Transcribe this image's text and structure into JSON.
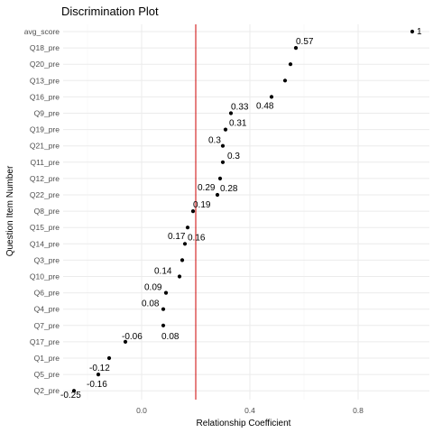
{
  "chart_data": {
    "type": "scatter",
    "title": "Discrimination Plot",
    "xlabel": "Relationship Coefficient",
    "ylabel": "Question Item Number",
    "xlim": [
      -0.3,
      1.02
    ],
    "x_ticks": [
      "0.0",
      "0.4",
      "0.8"
    ],
    "x_tick_values": [
      0.0,
      0.4,
      0.8
    ],
    "reference_line": {
      "x": 0.2,
      "color": "#cc0000"
    },
    "grid": true,
    "categories": [
      "avg_score",
      "Q18_pre",
      "Q20_pre",
      "Q13_pre",
      "Q16_pre",
      "Q9_pre",
      "Q19_pre",
      "Q21_pre",
      "Q11_pre",
      "Q12_pre",
      "Q22_pre",
      "Q8_pre",
      "Q15_pre",
      "Q14_pre",
      "Q3_pre",
      "Q10_pre",
      "Q6_pre",
      "Q4_pre",
      "Q7_pre",
      "Q17_pre",
      "Q1_pre",
      "Q5_pre",
      "Q2_pre"
    ],
    "values": [
      1.0,
      0.57,
      0.55,
      0.53,
      0.48,
      0.33,
      0.31,
      0.3,
      0.3,
      0.29,
      0.28,
      0.19,
      0.17,
      0.16,
      0.15,
      0.14,
      0.09,
      0.08,
      0.08,
      -0.06,
      -0.12,
      -0.16,
      -0.25
    ],
    "label_text": [
      "1",
      "0.57",
      "0.55",
      "0.53",
      "0.48",
      "0.33",
      "0.31",
      "0.3",
      "0.3",
      "0.29",
      "0.28",
      "0.19",
      "0.17",
      "0.16",
      "0.15",
      "0.14",
      "0.09",
      "0.08",
      "0.08",
      "-0.06",
      "-0.12",
      "-0.16",
      "-0.25"
    ],
    "labeled_points": [
      0,
      1,
      4,
      5,
      6,
      7,
      8,
      9,
      10,
      11,
      12,
      13,
      15,
      16,
      17,
      18,
      19,
      20,
      21,
      22
    ]
  }
}
